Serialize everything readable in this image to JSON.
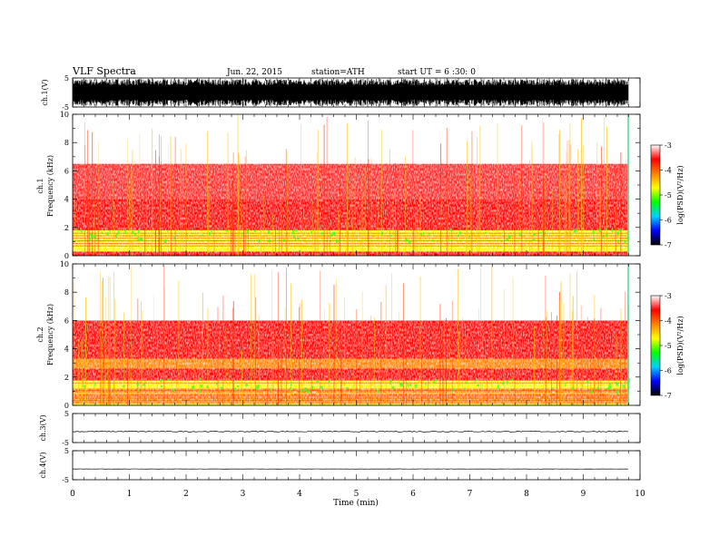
{
  "header": {
    "title": "VLF Spectra",
    "date": "Jun. 22, 2015",
    "station": "station=ATH",
    "start": "start UT = 6 :30: 0"
  },
  "chart_data": [
    {
      "type": "line",
      "name": "ch1-waveform",
      "ylabel": "ch.1(V)",
      "ylim": [
        -5,
        5
      ],
      "yticks": [
        "5",
        "-5"
      ],
      "xlim": [
        0,
        10
      ],
      "trace": "dense noise filling approx -4.5 to 4.5 V",
      "data_end_min": 9.8
    },
    {
      "type": "heatmap",
      "name": "ch1-spectrogram",
      "ylabel_top": "ch.1",
      "ylabel": "Frequency (kHz)",
      "ylim": [
        0,
        10
      ],
      "yticks": [
        "0",
        "2",
        "4",
        "6",
        "8",
        "10"
      ],
      "xlim": [
        0,
        10
      ],
      "data_end_min": 9.8,
      "bands": [
        {
          "f_low": 0.0,
          "f_high": 0.3,
          "level": -3.6
        },
        {
          "f_low": 0.3,
          "f_high": 1.0,
          "level": -4.6
        },
        {
          "f_low": 1.0,
          "f_high": 1.8,
          "level": -5.0
        },
        {
          "f_low": 1.8,
          "f_high": 4.0,
          "level": -3.8
        },
        {
          "f_low": 4.0,
          "f_high": 6.5,
          "level": -3.3
        },
        {
          "f_low": 6.5,
          "f_high": 10.0,
          "level": -3.1
        }
      ]
    },
    {
      "type": "heatmap",
      "name": "ch2-spectrogram",
      "ylabel_top": "ch.2",
      "ylabel": "Frequency (kHz)",
      "ylim": [
        0,
        10
      ],
      "yticks": [
        "0",
        "2",
        "4",
        "6",
        "8",
        "10"
      ],
      "xlim": [
        0,
        10
      ],
      "data_end_min": 9.8,
      "bands": [
        {
          "f_low": 0.0,
          "f_high": 0.2,
          "level": -4.8
        },
        {
          "f_low": 0.2,
          "f_high": 1.2,
          "level": -4.3
        },
        {
          "f_low": 1.2,
          "f_high": 1.8,
          "level": -5.0
        },
        {
          "f_low": 1.8,
          "f_high": 2.6,
          "level": -3.8
        },
        {
          "f_low": 2.6,
          "f_high": 3.3,
          "level": -4.4
        },
        {
          "f_low": 3.3,
          "f_high": 6.0,
          "level": -3.7
        },
        {
          "f_low": 6.0,
          "f_high": 10.0,
          "level": -3.2
        }
      ]
    },
    {
      "type": "line",
      "name": "ch3-waveform",
      "ylabel": "ch.3(V)",
      "ylim": [
        -5,
        5
      ],
      "yticks": [
        "5",
        "-5"
      ],
      "xlim": [
        0,
        10
      ],
      "trace": "flat near -1 V with small noise",
      "trace_level": -1.2,
      "data_end_min": 9.8
    },
    {
      "type": "line",
      "name": "ch4-waveform",
      "ylabel": "ch.4(V)",
      "ylim": [
        -5,
        5
      ],
      "yticks": [
        "5",
        "-5"
      ],
      "xlim": [
        0,
        10
      ],
      "trace": "flat near -1 V",
      "trace_level": -1.3,
      "data_end_min": 9.8
    }
  ],
  "xaxis": {
    "label": "Time (min)",
    "ticks": [
      "0",
      "1",
      "2",
      "3",
      "4",
      "5",
      "6",
      "7",
      "8",
      "9",
      "10"
    ]
  },
  "colorbar": {
    "label": "log(PSD)(V²/Hz)",
    "range": [
      -7,
      -3
    ],
    "ticks": [
      "-3",
      "-4",
      "-5",
      "-6",
      "-7"
    ],
    "colors": [
      "#000000",
      "#0000ff",
      "#00d0ff",
      "#00ff00",
      "#ffff00",
      "#ff8000",
      "#ff0000",
      "#ffffff"
    ]
  }
}
